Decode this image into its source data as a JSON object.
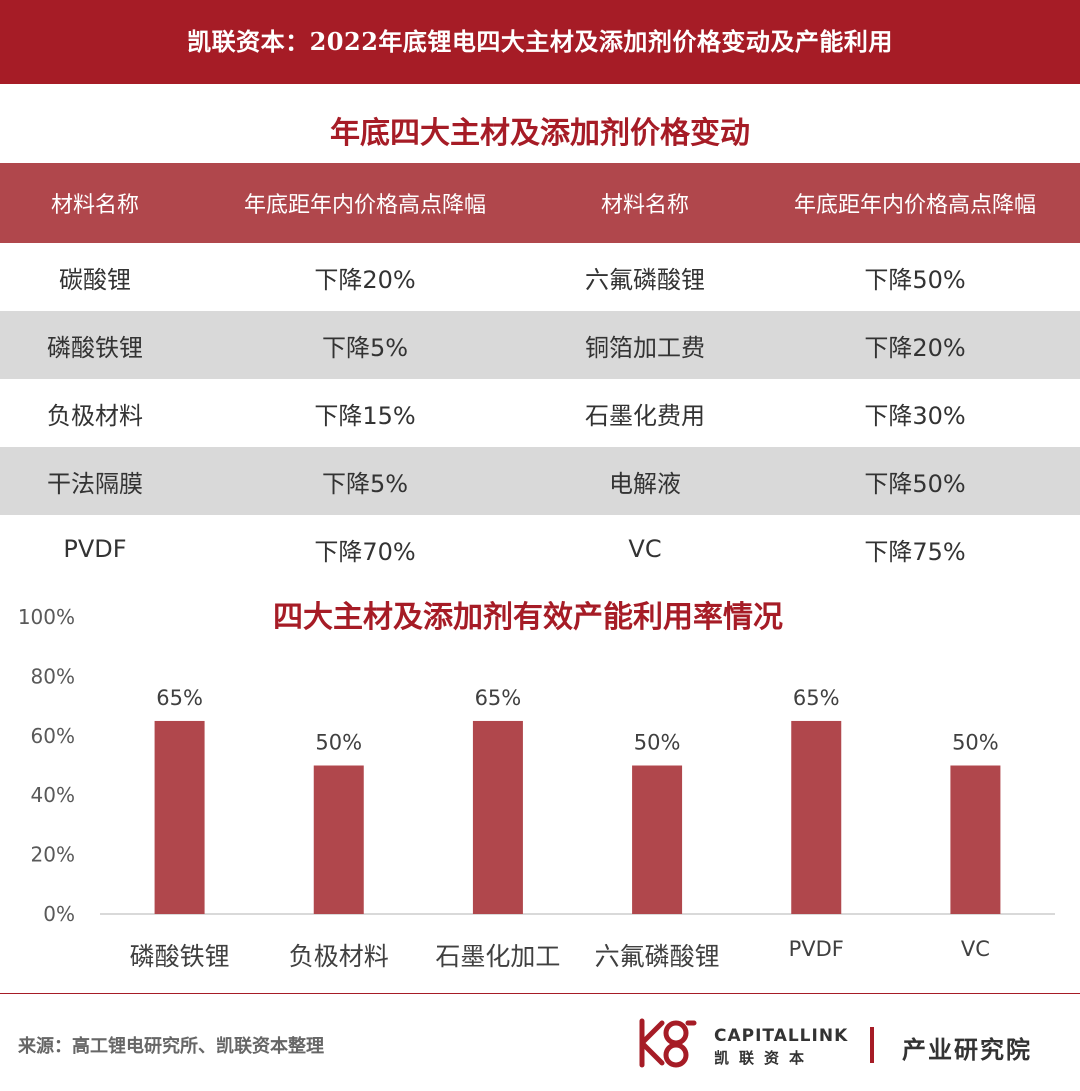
{
  "header": {
    "title": "凯联资本：2022年底锂电四大主材及添加剂价格变动及产能利用"
  },
  "price_table": {
    "title": "年底四大主材及添加剂价格变动",
    "columns": [
      "材料名称",
      "年底距年内价格高点降幅",
      "材料名称",
      "年底距年内价格高点降幅"
    ],
    "rows": [
      [
        "碳酸锂",
        "下降20%",
        "六氟磷酸锂",
        "下降50%"
      ],
      [
        "磷酸铁锂",
        "下降5%",
        "铜箔加工费",
        "下降20%"
      ],
      [
        "负极材料",
        "下降15%",
        "石墨化费用",
        "下降30%"
      ],
      [
        "干法隔膜",
        "下降5%",
        "电解液",
        "下降50%"
      ],
      [
        "PVDF",
        "下降70%",
        "VC",
        "下降75%"
      ]
    ]
  },
  "chart_data": {
    "type": "bar",
    "title": "四大主材及添加剂有效产能利用率情况",
    "categories": [
      "磷酸铁锂",
      "负极材料",
      "石墨化加工",
      "六氟磷酸锂",
      "PVDF",
      "VC"
    ],
    "values": [
      65,
      50,
      65,
      50,
      65,
      50
    ],
    "value_labels": [
      "65%",
      "50%",
      "65%",
      "50%",
      "65%",
      "50%"
    ],
    "ylim": [
      0,
      100
    ],
    "yticks": [
      "0%",
      "20%",
      "40%",
      "60%",
      "80%",
      "100%"
    ],
    "xlabel": "",
    "ylabel": "",
    "grid": false,
    "bar_color": "#b0474c"
  },
  "footer": {
    "source": "来源：高工锂电研究所、凯联资本整理",
    "logo_en": "CAPITALLINK",
    "logo_cn": "凯联资本",
    "institute": "产业研究院"
  },
  "colors": {
    "brand_red": "#a61c26",
    "table_header": "#b0474c",
    "row_alt": "#d9d9d9"
  }
}
